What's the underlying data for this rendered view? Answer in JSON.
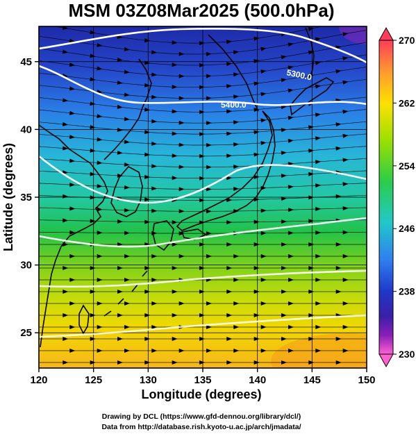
{
  "title": "MSM 03Z08Mar2025 (500.0hPa)",
  "map": {
    "x_axis": {
      "label": "Longitude (degrees)",
      "range": [
        120,
        150
      ],
      "ticks": [
        120,
        125,
        130,
        135,
        140,
        145,
        150
      ]
    },
    "y_axis": {
      "label": "Latitude  (degrees)",
      "range": [
        22.4,
        47.6
      ],
      "ticks": [
        25,
        30,
        35,
        40,
        45
      ]
    },
    "contours": [
      {
        "label": "5400.0",
        "lat_west": 36.7,
        "lat_mid": 43.2,
        "lat_east": 42.3
      },
      {
        "label": "5300.0",
        "lat_west": 45.4,
        "lat_mid": 47.9,
        "lat_east": 45.5
      }
    ],
    "grid_lines": true
  },
  "colorbar": {
    "min": 230,
    "max": 270,
    "tick_labels": [
      "270",
      "262",
      "254",
      "246",
      "238",
      "230"
    ],
    "colors": [
      "#ff3d5a",
      "#ff9a2f",
      "#ffe000",
      "#9ae000",
      "#2acd4a",
      "#22c8c8",
      "#2f7ff0",
      "#1f38c8",
      "#5a1fb0",
      "#d01fb8",
      "#ff60d0"
    ]
  },
  "credits": {
    "line1": "Drawing by DCL (https://www.gfd-dennou.org/library/dcl/)",
    "line2": "Data from http://database.rish.kyoto-u.ac.jp/arch/jmadata/"
  }
}
